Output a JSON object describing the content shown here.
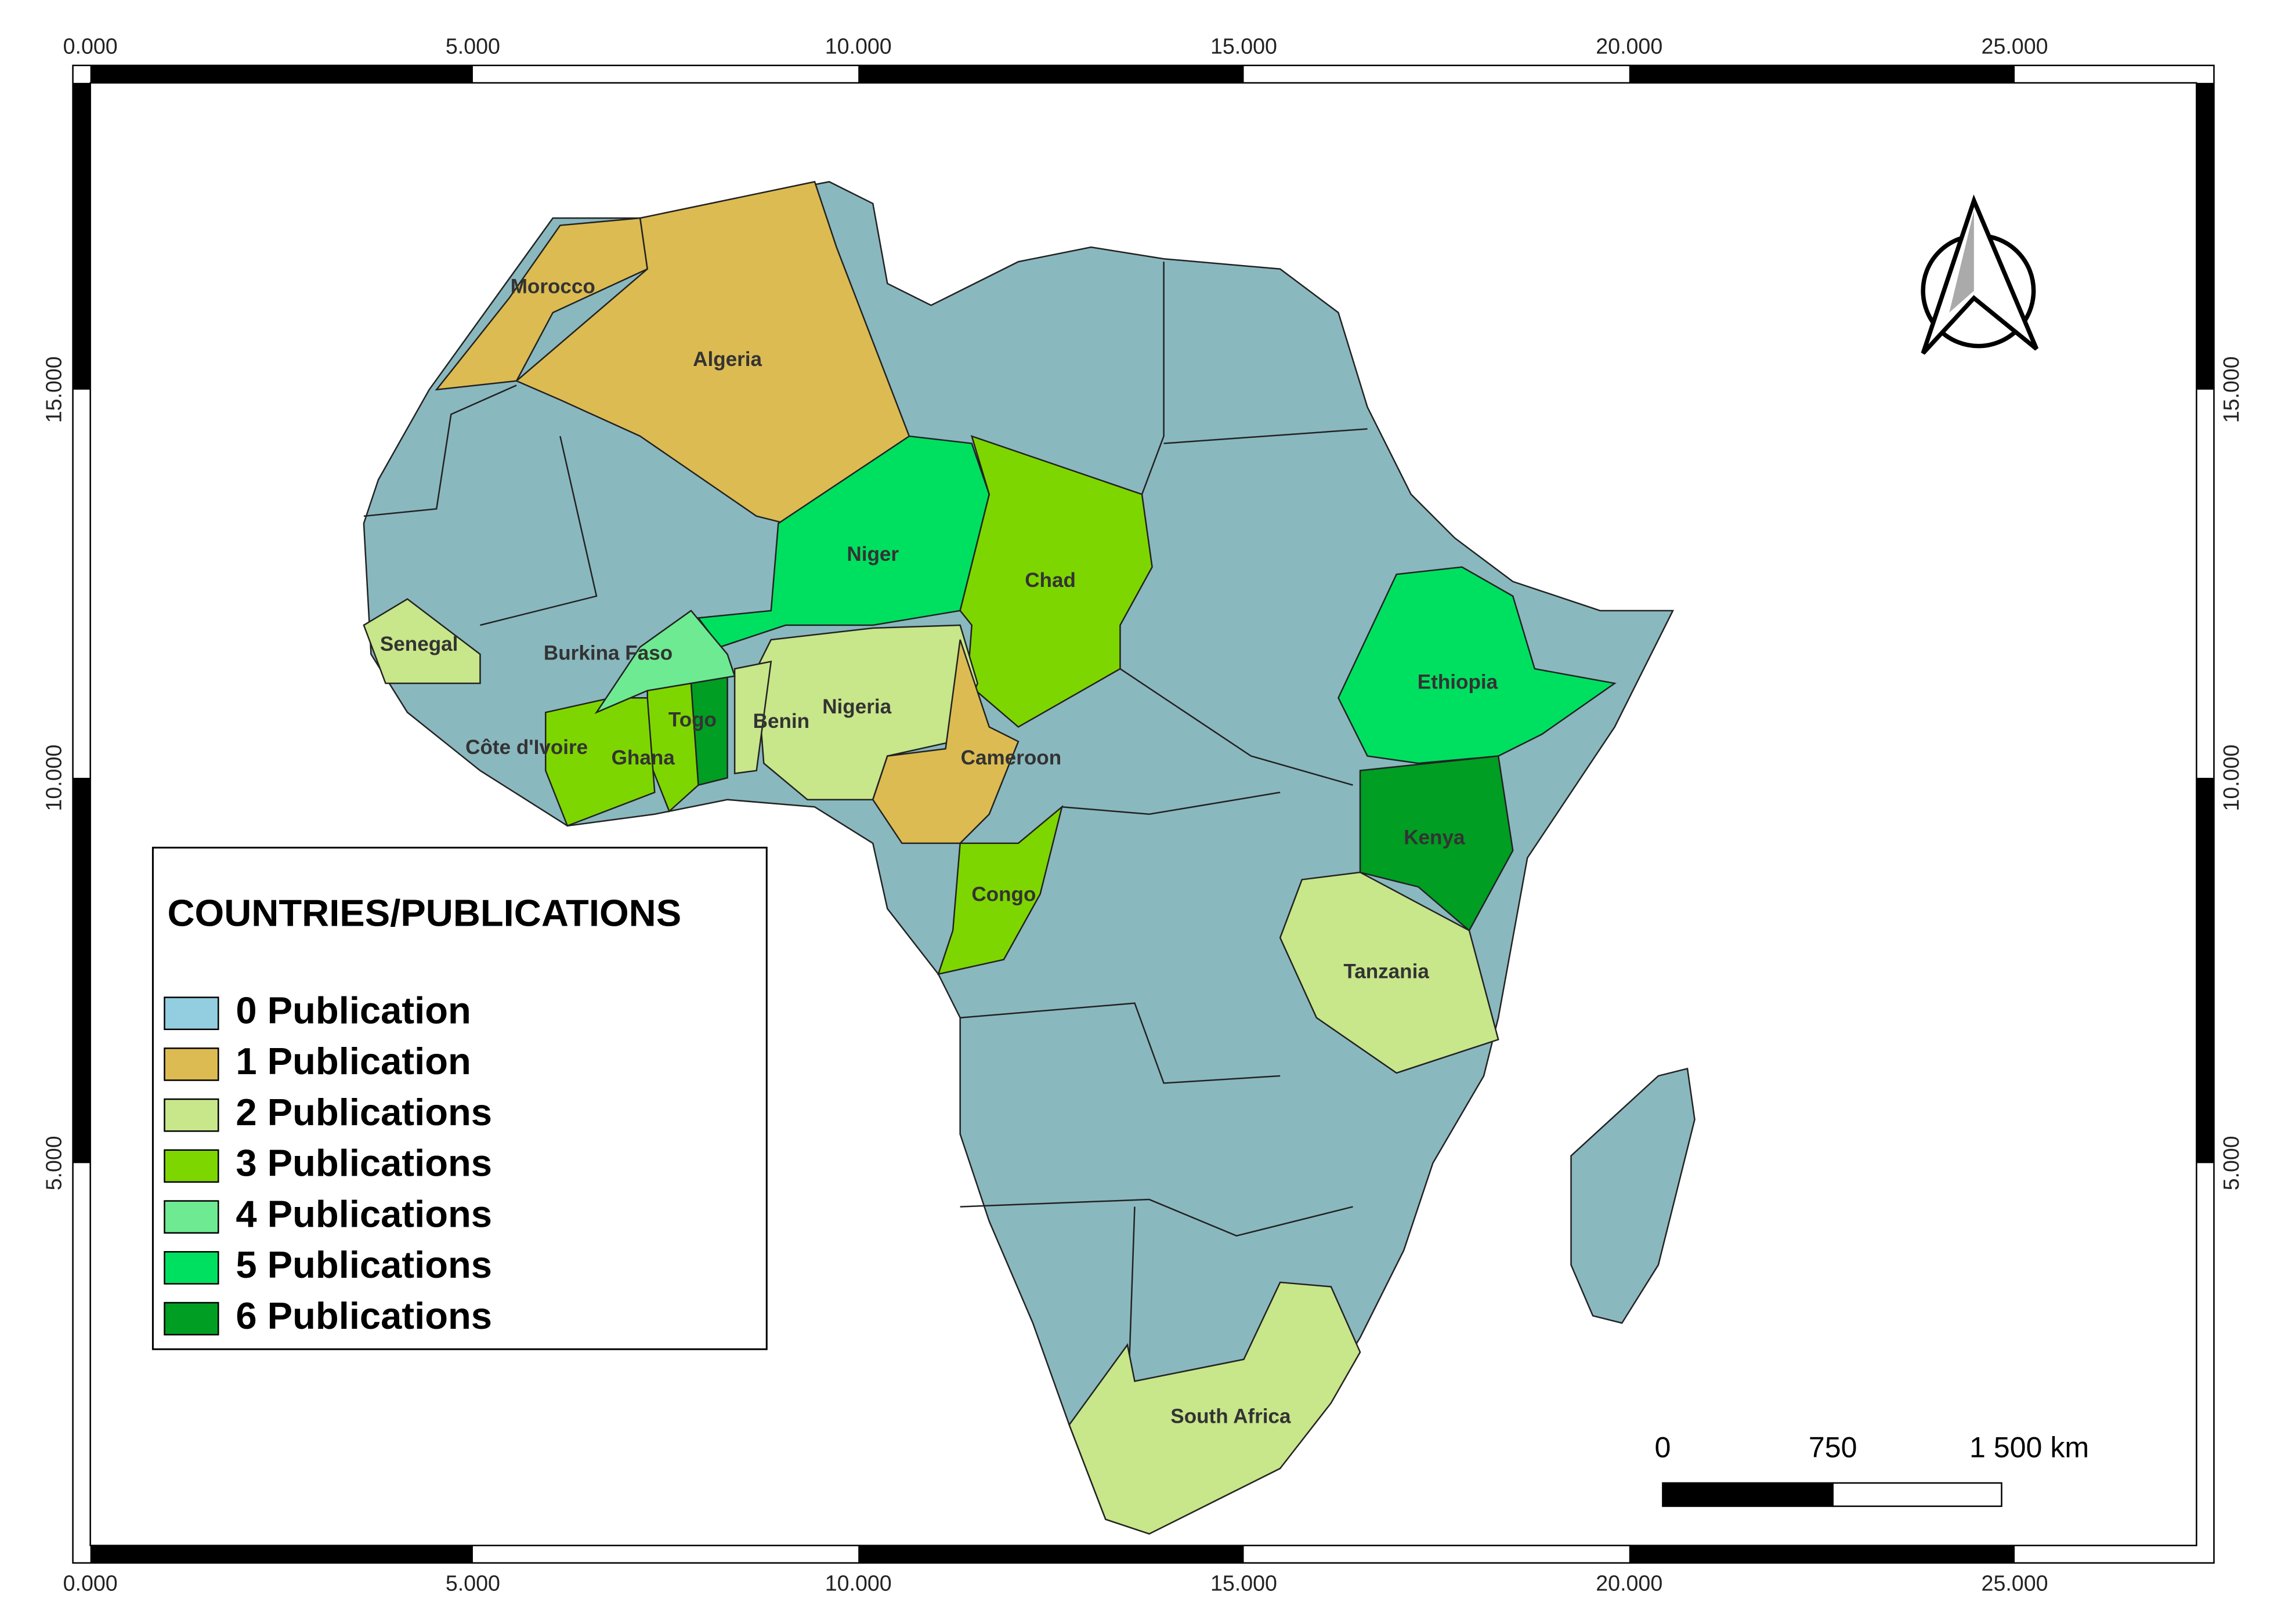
{
  "frame": {
    "top_ticks": [
      "0.000",
      "5.000",
      "10.000",
      "15.000",
      "20.000",
      "25.000"
    ],
    "bottom_ticks": [
      "0.000",
      "5.000",
      "10.000",
      "15.000",
      "20.000",
      "25.000"
    ],
    "left_ticks": [
      "15.000",
      "10.000",
      "5.000"
    ],
    "right_ticks": [
      "15.000",
      "10.000",
      "5.000"
    ]
  },
  "map": {
    "countries": [
      {
        "name": "Morocco",
        "publications": 1
      },
      {
        "name": "Algeria",
        "publications": 1
      },
      {
        "name": "Niger",
        "publications": 5
      },
      {
        "name": "Chad",
        "publications": 3
      },
      {
        "name": "Nigeria",
        "publications": 2
      },
      {
        "name": "Cameroon",
        "publications": 1
      },
      {
        "name": "Benin",
        "publications": 2
      },
      {
        "name": "Togo",
        "publications": 6
      },
      {
        "name": "Ghana",
        "publications": 3
      },
      {
        "name": "Côte d'Ivoire",
        "publications": 3
      },
      {
        "name": "Burkina Faso",
        "publications": 4
      },
      {
        "name": "Senegal",
        "publications": 2
      },
      {
        "name": "Congo",
        "publications": 3
      },
      {
        "name": "Ethiopia",
        "publications": 5
      },
      {
        "name": "Kenya",
        "publications": 6
      },
      {
        "name": "Tanzania",
        "publications": 2
      },
      {
        "name": "South Africa",
        "publications": 2
      }
    ]
  },
  "legend": {
    "title": "COUNTRIES/PUBLICATIONS",
    "items": [
      {
        "label": "0 Publication",
        "color": "#92cde0"
      },
      {
        "label": "1 Publication",
        "color": "#dcbb52"
      },
      {
        "label": "2 Publications",
        "color": "#c8e68a"
      },
      {
        "label": "3 Publications",
        "color": "#7ed600"
      },
      {
        "label": "4 Publications",
        "color": "#6eea92"
      },
      {
        "label": "5 Publications",
        "color": "#00e060"
      },
      {
        "label": "6 Publications",
        "color": "#009e22"
      }
    ]
  },
  "scale_bar": {
    "labels": [
      "0",
      "750",
      "1 500 km"
    ]
  }
}
